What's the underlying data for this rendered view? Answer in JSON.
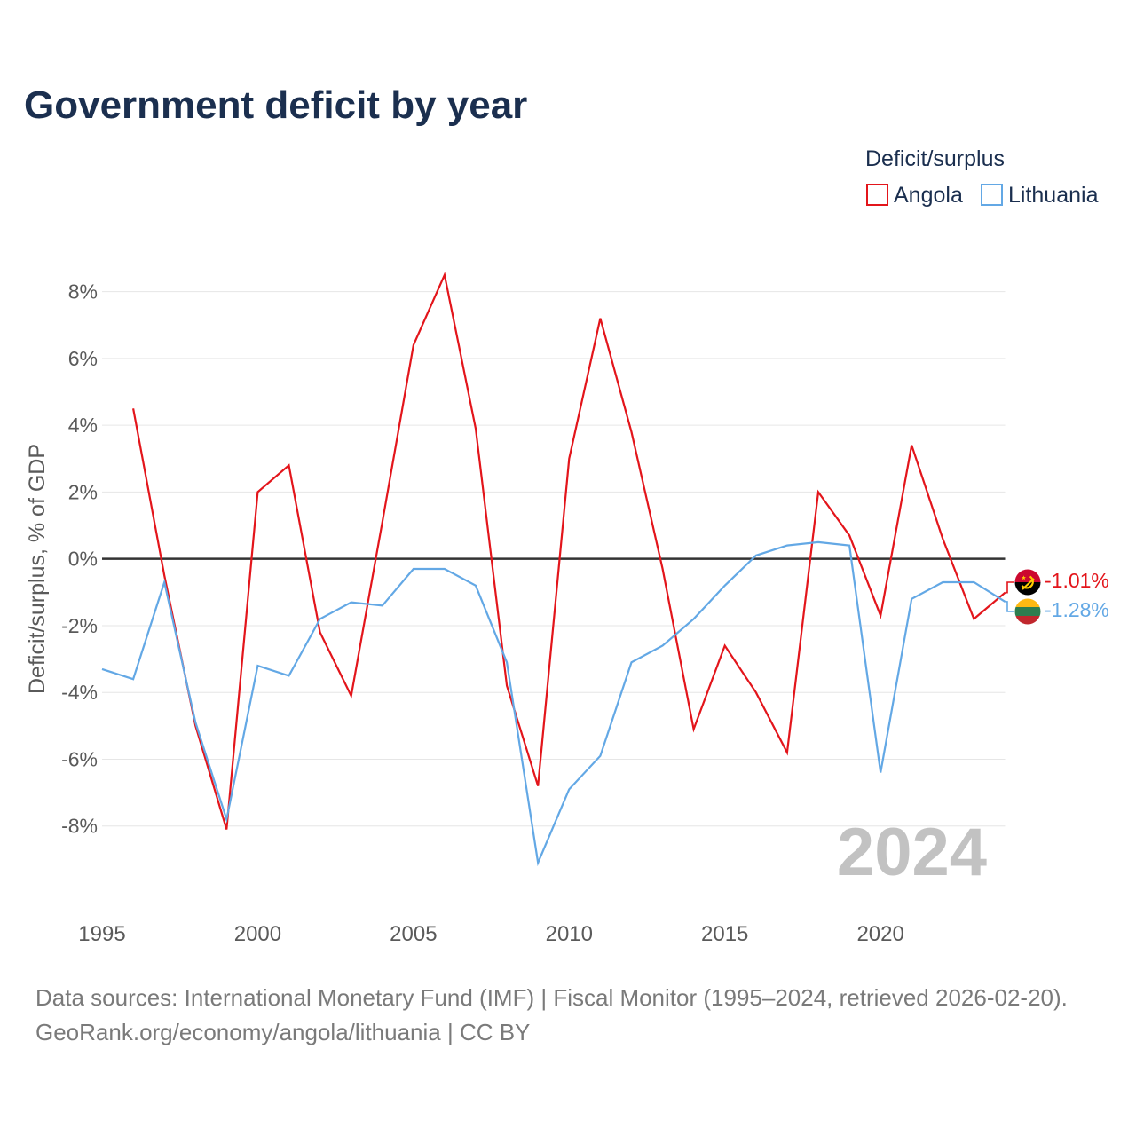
{
  "chart_data": {
    "type": "line",
    "title": "Government deficit by year",
    "ylabel": "Deficit/surplus, % of GDP",
    "legend_title": "Deficit/surplus",
    "legend_position": "top-right",
    "current_year": "2024",
    "grid": true,
    "x": [
      1995,
      1996,
      1997,
      1998,
      1999,
      2000,
      2001,
      2002,
      2003,
      2004,
      2005,
      2006,
      2007,
      2008,
      2009,
      2010,
      2011,
      2012,
      2013,
      2014,
      2015,
      2016,
      2017,
      2018,
      2019,
      2020,
      2021,
      2022,
      2023,
      2024
    ],
    "xlim": [
      1995,
      2024
    ],
    "ylim": [
      -10,
      9
    ],
    "x_ticks": [
      1995,
      2000,
      2005,
      2010,
      2015,
      2020
    ],
    "x_tick_labels": [
      "1995",
      "2000",
      "2005",
      "2010",
      "2015",
      "2020"
    ],
    "y_ticks": [
      8,
      6,
      4,
      2,
      0,
      -2,
      -4,
      -6,
      -8
    ],
    "y_tick_labels": [
      "8%",
      "6%",
      "4%",
      "2%",
      "0%",
      "-2%",
      "-4%",
      "-6%",
      "-8%"
    ],
    "series": [
      {
        "name": "Angola",
        "color": "#e3151b",
        "flag_icon": "angola-flag-icon",
        "values": [
          null,
          4.5,
          -0.5,
          -5.0,
          -8.1,
          2.0,
          2.8,
          -2.2,
          -4.1,
          1.1,
          6.4,
          8.5,
          3.9,
          -3.8,
          -6.8,
          3.0,
          7.2,
          3.8,
          -0.3,
          -5.1,
          -2.6,
          -4.0,
          -5.8,
          2.0,
          0.7,
          -1.7,
          3.4,
          0.6,
          -1.8,
          -1.01
        ],
        "end_label": "-1.01%"
      },
      {
        "name": "Lithuania",
        "color": "#63a8e5",
        "flag_icon": "lithuania-flag-icon",
        "values": [
          -3.3,
          -3.6,
          -0.7,
          -4.9,
          -7.8,
          -3.2,
          -3.5,
          -1.8,
          -1.3,
          -1.4,
          -0.3,
          -0.3,
          -0.8,
          -3.1,
          -9.1,
          -6.9,
          -5.9,
          -3.1,
          -2.6,
          -1.8,
          -0.8,
          0.1,
          0.4,
          0.5,
          0.4,
          -6.4,
          -1.2,
          -0.7,
          -0.7,
          -1.28
        ],
        "end_label": "-1.28%"
      }
    ]
  },
  "source": {
    "line1": "Data sources: International Monetary Fund (IMF) | Fiscal Monitor (1995–2024, retrieved 2026-02-20).",
    "line2": "GeoRank.org/economy/angola/lithuania | CC BY"
  }
}
